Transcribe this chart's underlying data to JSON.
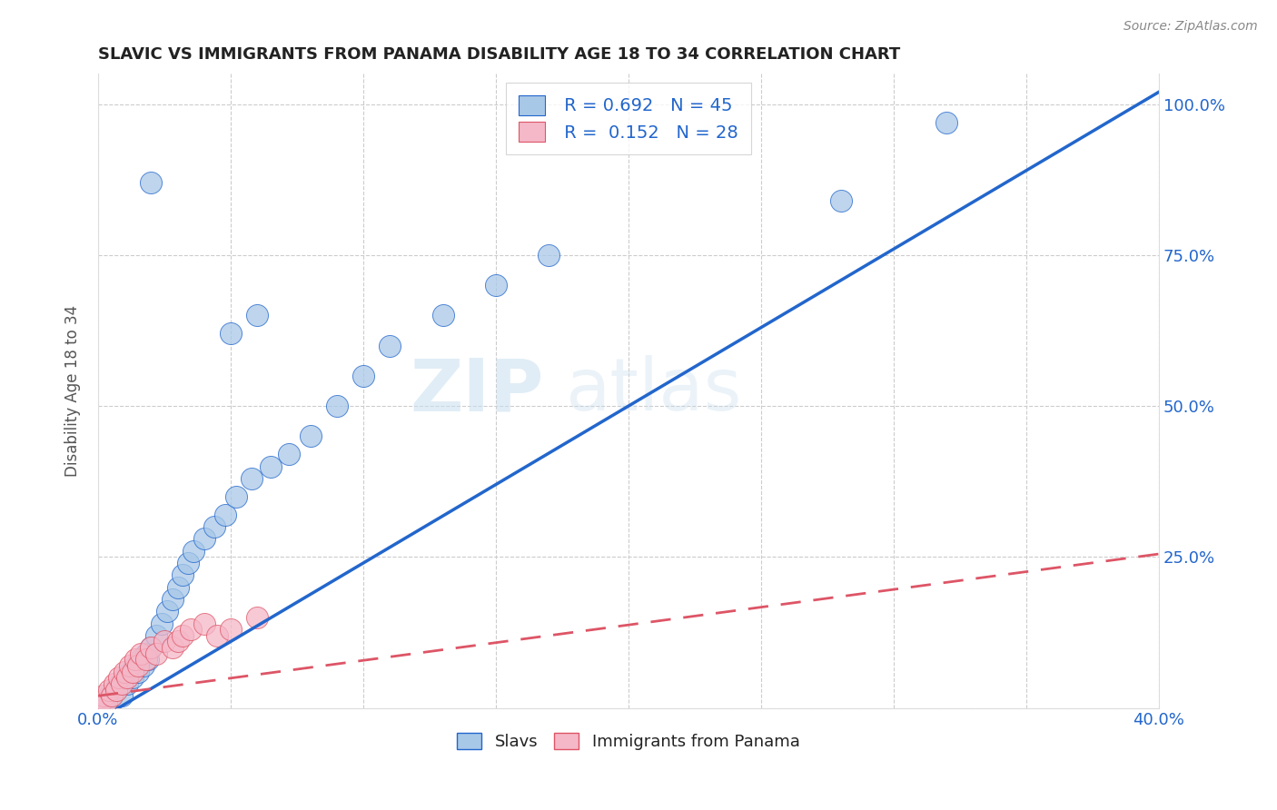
{
  "title": "SLAVIC VS IMMIGRANTS FROM PANAMA DISABILITY AGE 18 TO 34 CORRELATION CHART",
  "source": "Source: ZipAtlas.com",
  "ylabel": "Disability Age 18 to 34",
  "xlim": [
    0.0,
    0.4
  ],
  "ylim": [
    0.0,
    1.05
  ],
  "xticks": [
    0.0,
    0.05,
    0.1,
    0.15,
    0.2,
    0.25,
    0.3,
    0.35,
    0.4
  ],
  "yticks": [
    0.0,
    0.25,
    0.5,
    0.75,
    1.0
  ],
  "ytick_labels": [
    "",
    "25.0%",
    "50.0%",
    "75.0%",
    "100.0%"
  ],
  "xtick_labels": [
    "0.0%",
    "",
    "",
    "",
    "",
    "",
    "",
    "",
    "40.0%"
  ],
  "slavs_color": "#a8c8e8",
  "panama_color": "#f5b8c8",
  "slavs_line_color": "#2266cc",
  "panama_line_color": "#dd5566",
  "legend_r1": "R = 0.692",
  "legend_n1": "N = 45",
  "legend_r2": "R =  0.152",
  "legend_n2": "N = 28",
  "watermark_zip": "ZIP",
  "watermark_atlas": "atlas",
  "slavs_x": [
    0.003,
    0.004,
    0.005,
    0.006,
    0.007,
    0.008,
    0.009,
    0.01,
    0.011,
    0.012,
    0.013,
    0.014,
    0.015,
    0.016,
    0.017,
    0.018,
    0.019,
    0.02,
    0.022,
    0.024,
    0.026,
    0.028,
    0.03,
    0.032,
    0.034,
    0.036,
    0.04,
    0.044,
    0.048,
    0.052,
    0.058,
    0.065,
    0.072,
    0.08,
    0.09,
    0.1,
    0.11,
    0.13,
    0.15,
    0.17,
    0.05,
    0.06,
    0.02,
    0.28,
    0.32
  ],
  "slavs_y": [
    0.01,
    0.02,
    0.02,
    0.03,
    0.03,
    0.04,
    0.02,
    0.05,
    0.04,
    0.06,
    0.05,
    0.07,
    0.06,
    0.08,
    0.07,
    0.09,
    0.08,
    0.1,
    0.12,
    0.14,
    0.16,
    0.18,
    0.2,
    0.22,
    0.24,
    0.26,
    0.28,
    0.3,
    0.32,
    0.35,
    0.38,
    0.4,
    0.42,
    0.45,
    0.5,
    0.55,
    0.6,
    0.65,
    0.7,
    0.75,
    0.62,
    0.65,
    0.87,
    0.84,
    0.97
  ],
  "panama_x": [
    0.001,
    0.002,
    0.003,
    0.004,
    0.005,
    0.006,
    0.007,
    0.008,
    0.009,
    0.01,
    0.011,
    0.012,
    0.013,
    0.014,
    0.015,
    0.016,
    0.018,
    0.02,
    0.022,
    0.025,
    0.028,
    0.03,
    0.032,
    0.035,
    0.04,
    0.045,
    0.05,
    0.06
  ],
  "panama_y": [
    0.01,
    0.02,
    0.01,
    0.03,
    0.02,
    0.04,
    0.03,
    0.05,
    0.04,
    0.06,
    0.05,
    0.07,
    0.06,
    0.08,
    0.07,
    0.09,
    0.08,
    0.1,
    0.09,
    0.11,
    0.1,
    0.11,
    0.12,
    0.13,
    0.14,
    0.12,
    0.13,
    0.15
  ],
  "slavs_line": {
    "x0": 0.0,
    "y0": -0.02,
    "x1": 0.4,
    "y1": 1.02
  },
  "panama_line": {
    "x0": 0.0,
    "y0": 0.02,
    "x1": 0.4,
    "y1": 0.255
  }
}
